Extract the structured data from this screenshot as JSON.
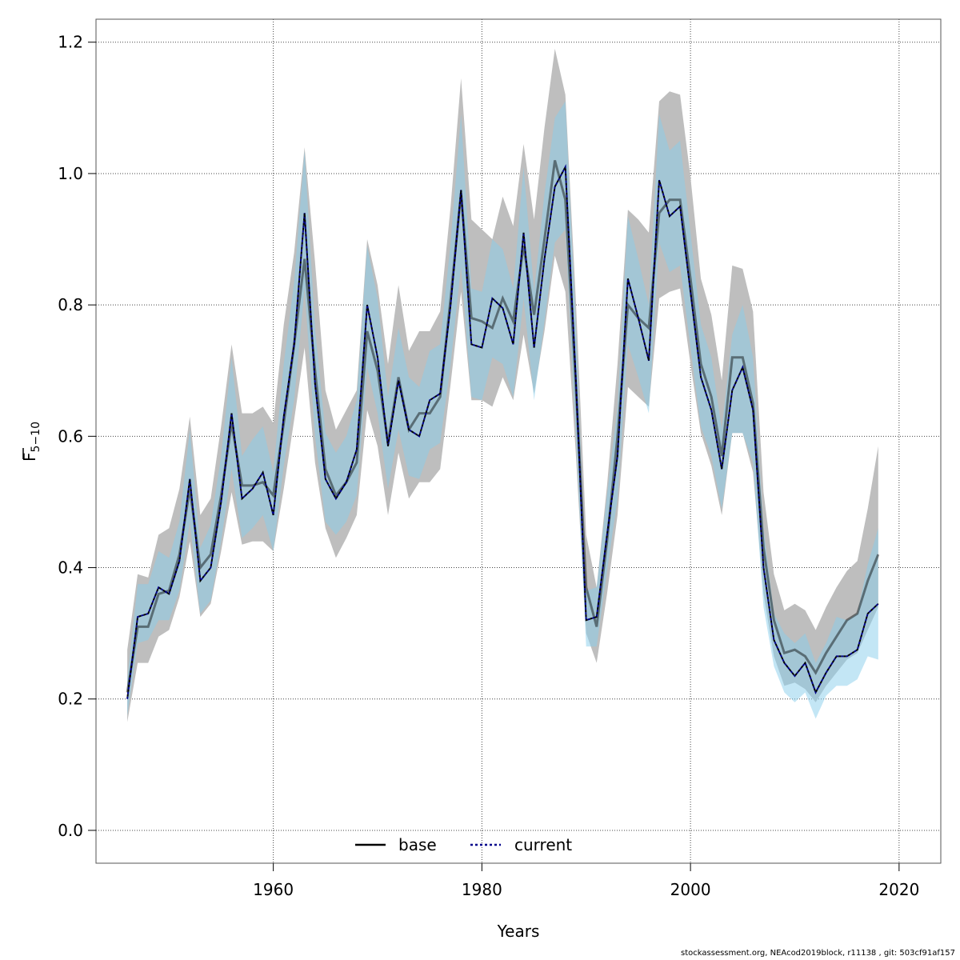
{
  "chart_data": {
    "type": "line",
    "xlabel": "Years",
    "ylabel_main": "F",
    "ylabel_sub": "5−10",
    "xlim": [
      1943,
      2024
    ],
    "ylim": [
      -0.05,
      1.235
    ],
    "x_ticks": [
      1960,
      1980,
      2000,
      2020
    ],
    "y_ticks": [
      0.0,
      0.2,
      0.4,
      0.6,
      0.8,
      1.0,
      1.2
    ],
    "y_tick_labels": [
      "0.0",
      "0.2",
      "0.4",
      "0.6",
      "0.8",
      "1.0",
      "1.2"
    ],
    "grid": true,
    "legend": {
      "position": "bottom-center",
      "entries": [
        "base",
        "current"
      ]
    },
    "colors": {
      "base_band": "#bebebe",
      "current_band": "#87ceeb",
      "base_line": "#000000",
      "current_line": "#00008b"
    },
    "x": [
      1946,
      1947,
      1948,
      1949,
      1950,
      1951,
      1952,
      1953,
      1954,
      1955,
      1956,
      1957,
      1958,
      1959,
      1960,
      1961,
      1962,
      1963,
      1964,
      1965,
      1966,
      1967,
      1968,
      1969,
      1970,
      1971,
      1972,
      1973,
      1974,
      1975,
      1976,
      1977,
      1978,
      1979,
      1980,
      1981,
      1982,
      1983,
      1984,
      1985,
      1986,
      1987,
      1988,
      1989,
      1990,
      1991,
      1992,
      1993,
      1994,
      1995,
      1996,
      1997,
      1998,
      1999,
      2000,
      2001,
      2002,
      2003,
      2004,
      2005,
      2006,
      2007,
      2008,
      2009,
      2010,
      2011,
      2012,
      2013,
      2014,
      2015,
      2016,
      2017,
      2018
    ],
    "series": [
      {
        "name": "base",
        "estimate": [
          0.21,
          0.31,
          0.31,
          0.36,
          0.365,
          0.42,
          0.52,
          0.4,
          0.42,
          0.51,
          0.62,
          0.525,
          0.525,
          0.53,
          0.51,
          0.62,
          0.74,
          0.87,
          0.7,
          0.55,
          0.51,
          0.53,
          0.56,
          0.76,
          0.7,
          0.59,
          0.69,
          0.61,
          0.635,
          0.635,
          0.66,
          0.81,
          0.97,
          0.78,
          0.775,
          0.765,
          0.81,
          0.775,
          0.89,
          0.785,
          0.9,
          1.02,
          0.96,
          0.68,
          0.37,
          0.31,
          0.44,
          0.6,
          0.8,
          0.78,
          0.765,
          0.94,
          0.96,
          0.96,
          0.84,
          0.71,
          0.66,
          0.57,
          0.72,
          0.72,
          0.65,
          0.43,
          0.32,
          0.27,
          0.275,
          0.265,
          0.24,
          0.27,
          0.295,
          0.32,
          0.33,
          0.38,
          0.42
        ],
        "lower": [
          0.165,
          0.255,
          0.255,
          0.295,
          0.305,
          0.355,
          0.44,
          0.325,
          0.345,
          0.425,
          0.515,
          0.435,
          0.44,
          0.44,
          0.425,
          0.52,
          0.625,
          0.735,
          0.56,
          0.46,
          0.415,
          0.445,
          0.48,
          0.64,
          0.585,
          0.48,
          0.575,
          0.505,
          0.53,
          0.53,
          0.55,
          0.68,
          0.82,
          0.655,
          0.655,
          0.645,
          0.69,
          0.655,
          0.755,
          0.665,
          0.76,
          0.875,
          0.82,
          0.575,
          0.3,
          0.255,
          0.36,
          0.48,
          0.675,
          0.66,
          0.645,
          0.81,
          0.82,
          0.825,
          0.71,
          0.605,
          0.555,
          0.48,
          0.605,
          0.605,
          0.545,
          0.36,
          0.265,
          0.22,
          0.225,
          0.215,
          0.195,
          0.22,
          0.24,
          0.26,
          0.27,
          0.305,
          0.34
        ],
        "upper": [
          0.275,
          0.39,
          0.385,
          0.45,
          0.46,
          0.52,
          0.63,
          0.48,
          0.505,
          0.615,
          0.74,
          0.635,
          0.635,
          0.645,
          0.62,
          0.77,
          0.88,
          1.04,
          0.865,
          0.67,
          0.61,
          0.64,
          0.67,
          0.9,
          0.83,
          0.71,
          0.83,
          0.73,
          0.76,
          0.76,
          0.79,
          0.95,
          1.145,
          0.93,
          0.915,
          0.9,
          0.965,
          0.92,
          1.045,
          0.93,
          1.07,
          1.19,
          1.12,
          0.81,
          0.45,
          0.37,
          0.525,
          0.71,
          0.945,
          0.93,
          0.91,
          1.11,
          1.125,
          1.12,
          0.995,
          0.84,
          0.785,
          0.685,
          0.86,
          0.855,
          0.79,
          0.515,
          0.39,
          0.335,
          0.345,
          0.335,
          0.305,
          0.34,
          0.37,
          0.395,
          0.41,
          0.49,
          0.585
        ]
      },
      {
        "name": "current",
        "estimate": [
          0.2,
          0.325,
          0.33,
          0.37,
          0.36,
          0.41,
          0.535,
          0.38,
          0.4,
          0.5,
          0.635,
          0.505,
          0.52,
          0.545,
          0.48,
          0.63,
          0.74,
          0.94,
          0.68,
          0.535,
          0.505,
          0.53,
          0.58,
          0.8,
          0.72,
          0.585,
          0.685,
          0.61,
          0.6,
          0.655,
          0.665,
          0.8,
          0.975,
          0.74,
          0.735,
          0.81,
          0.795,
          0.74,
          0.91,
          0.735,
          0.87,
          0.98,
          1.01,
          0.69,
          0.32,
          0.325,
          0.45,
          0.57,
          0.84,
          0.78,
          0.715,
          0.99,
          0.935,
          0.95,
          0.82,
          0.69,
          0.64,
          0.55,
          0.67,
          0.705,
          0.64,
          0.4,
          0.29,
          0.255,
          0.235,
          0.255,
          0.21,
          0.24,
          0.265,
          0.265,
          0.275,
          0.33,
          0.345
        ],
        "lower": [
          0.175,
          0.285,
          0.29,
          0.32,
          0.32,
          0.365,
          0.47,
          0.33,
          0.35,
          0.44,
          0.55,
          0.445,
          0.46,
          0.48,
          0.425,
          0.555,
          0.655,
          0.825,
          0.6,
          0.47,
          0.45,
          0.47,
          0.51,
          0.705,
          0.635,
          0.52,
          0.61,
          0.54,
          0.535,
          0.58,
          0.59,
          0.71,
          0.86,
          0.66,
          0.655,
          0.72,
          0.71,
          0.66,
          0.81,
          0.655,
          0.775,
          0.895,
          0.915,
          0.605,
          0.28,
          0.28,
          0.395,
          0.505,
          0.74,
          0.69,
          0.635,
          0.895,
          0.85,
          0.86,
          0.735,
          0.615,
          0.57,
          0.49,
          0.605,
          0.605,
          0.56,
          0.34,
          0.25,
          0.21,
          0.195,
          0.21,
          0.17,
          0.205,
          0.22,
          0.22,
          0.23,
          0.265,
          0.26
        ],
        "upper": [
          0.23,
          0.375,
          0.375,
          0.425,
          0.415,
          0.47,
          0.61,
          0.43,
          0.465,
          0.57,
          0.72,
          0.57,
          0.595,
          0.615,
          0.545,
          0.71,
          0.835,
          1.035,
          0.765,
          0.605,
          0.575,
          0.6,
          0.655,
          0.89,
          0.81,
          0.66,
          0.765,
          0.69,
          0.675,
          0.73,
          0.74,
          0.895,
          1.09,
          0.825,
          0.82,
          0.9,
          0.885,
          0.825,
          1.01,
          0.82,
          0.97,
          1.085,
          1.11,
          0.775,
          0.365,
          0.37,
          0.51,
          0.645,
          0.935,
          0.87,
          0.8,
          1.09,
          1.035,
          1.05,
          0.91,
          0.77,
          0.72,
          0.61,
          0.755,
          0.8,
          0.72,
          0.46,
          0.33,
          0.3,
          0.285,
          0.3,
          0.255,
          0.285,
          0.325,
          0.32,
          0.33,
          0.405,
          0.46
        ]
      }
    ]
  },
  "footer": "stockassessment.org, NEAcod2019block, r11138 , git: 503cf91af157"
}
